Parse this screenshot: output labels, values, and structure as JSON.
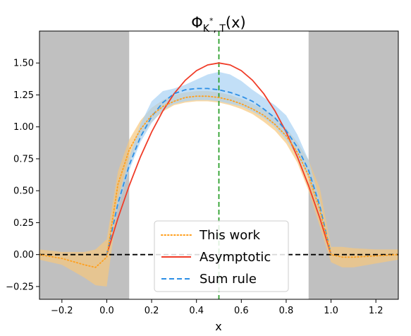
{
  "chart_data": {
    "type": "line",
    "title_parts": {
      "main": "Φ",
      "subscript": "K",
      "superscript": "*",
      "subscript_tail": ", T",
      "argument": "(x)"
    },
    "xlabel": "x",
    "ylabel": "",
    "xlim": [
      -0.3,
      1.3
    ],
    "ylim": [
      -0.35,
      1.75
    ],
    "x_ticks": [
      -0.2,
      0.0,
      0.2,
      0.4,
      0.6,
      0.8,
      1.0,
      1.2
    ],
    "x_tick_labels": [
      "−0.2",
      "0.0",
      "0.2",
      "0.4",
      "0.6",
      "0.8",
      "1.0",
      "1.2"
    ],
    "y_ticks": [
      -0.25,
      0.0,
      0.25,
      0.5,
      0.75,
      1.0,
      1.25,
      1.5
    ],
    "y_tick_labels": [
      "−0.25",
      "0.00",
      "0.25",
      "0.50",
      "0.75",
      "1.00",
      "1.25",
      "1.50"
    ],
    "grid": false,
    "legend_position": "bottom-center",
    "shaded_regions": [
      {
        "x_from": -0.3,
        "x_to": 0.1,
        "color": "#c0c0c0"
      },
      {
        "x_from": 0.9,
        "x_to": 1.3,
        "color": "#c0c0c0"
      }
    ],
    "reference_lines": [
      {
        "orientation": "horizontal",
        "value": 0.0,
        "color": "#000000",
        "style": "dashed"
      },
      {
        "orientation": "vertical",
        "value": 0.5,
        "color": "#2ca02c",
        "style": "dashed"
      }
    ],
    "series": [
      {
        "name": "This work",
        "style": "dotted",
        "color": "#ff9f1c",
        "band_color": "#f7c77e",
        "x": [
          -0.3,
          -0.2,
          -0.1,
          -0.05,
          0.0,
          0.05,
          0.1,
          0.15,
          0.2,
          0.25,
          0.3,
          0.35,
          0.4,
          0.45,
          0.5,
          0.55,
          0.6,
          0.65,
          0.7,
          0.75,
          0.8,
          0.85,
          0.9,
          0.95,
          1.0,
          1.05,
          1.1,
          1.2,
          1.3
        ],
        "y": [
          0.0,
          -0.03,
          -0.08,
          -0.1,
          -0.02,
          0.55,
          0.82,
          0.98,
          1.09,
          1.16,
          1.2,
          1.23,
          1.24,
          1.24,
          1.23,
          1.21,
          1.18,
          1.14,
          1.09,
          1.02,
          0.93,
          0.8,
          0.62,
          0.35,
          0.0,
          -0.02,
          -0.02,
          -0.01,
          0.0
        ],
        "lower": [
          -0.04,
          -0.08,
          -0.18,
          -0.24,
          -0.25,
          0.4,
          0.72,
          0.92,
          1.04,
          1.12,
          1.17,
          1.19,
          1.2,
          1.2,
          1.19,
          1.17,
          1.14,
          1.1,
          1.04,
          0.97,
          0.87,
          0.72,
          0.5,
          0.22,
          -0.06,
          -0.1,
          -0.1,
          -0.07,
          -0.04
        ],
        "upper": [
          0.04,
          0.02,
          0.02,
          0.04,
          0.12,
          0.65,
          0.9,
          1.05,
          1.15,
          1.21,
          1.25,
          1.27,
          1.28,
          1.28,
          1.27,
          1.25,
          1.22,
          1.18,
          1.14,
          1.08,
          0.99,
          0.88,
          0.74,
          0.52,
          0.06,
          0.06,
          0.05,
          0.04,
          0.04
        ]
      },
      {
        "name": "Asymptotic",
        "style": "solid",
        "color": "#f03c28",
        "x": [
          0.0,
          0.05,
          0.1,
          0.15,
          0.2,
          0.25,
          0.3,
          0.35,
          0.4,
          0.45,
          0.5,
          0.55,
          0.6,
          0.65,
          0.7,
          0.75,
          0.8,
          0.85,
          0.9,
          0.95,
          1.0
        ],
        "y": [
          0.0,
          0.285,
          0.54,
          0.765,
          0.96,
          1.125,
          1.26,
          1.365,
          1.44,
          1.485,
          1.5,
          1.485,
          1.44,
          1.365,
          1.26,
          1.125,
          0.96,
          0.765,
          0.54,
          0.285,
          0.0
        ]
      },
      {
        "name": "Sum rule",
        "style": "dashed",
        "color": "#2d8fe6",
        "band_color": "#a8d2f4",
        "x": [
          0.0,
          0.05,
          0.1,
          0.15,
          0.2,
          0.25,
          0.3,
          0.35,
          0.4,
          0.45,
          0.5,
          0.55,
          0.6,
          0.65,
          0.7,
          0.75,
          0.8,
          0.85,
          0.9,
          0.95,
          1.0
        ],
        "y": [
          0.0,
          0.4,
          0.7,
          0.92,
          1.08,
          1.19,
          1.26,
          1.29,
          1.3,
          1.3,
          1.29,
          1.27,
          1.24,
          1.2,
          1.14,
          1.07,
          0.97,
          0.84,
          0.66,
          0.38,
          0.0
        ],
        "lower": [
          0.0,
          0.36,
          0.66,
          0.88,
          1.03,
          1.13,
          1.18,
          1.2,
          1.21,
          1.21,
          1.2,
          1.18,
          1.16,
          1.12,
          1.07,
          1.0,
          0.9,
          0.77,
          0.6,
          0.33,
          0.0
        ],
        "upper": [
          0.0,
          0.44,
          0.76,
          1.02,
          1.2,
          1.28,
          1.3,
          1.33,
          1.37,
          1.41,
          1.43,
          1.41,
          1.36,
          1.29,
          1.23,
          1.17,
          1.09,
          0.94,
          0.74,
          0.43,
          0.0
        ]
      }
    ]
  }
}
